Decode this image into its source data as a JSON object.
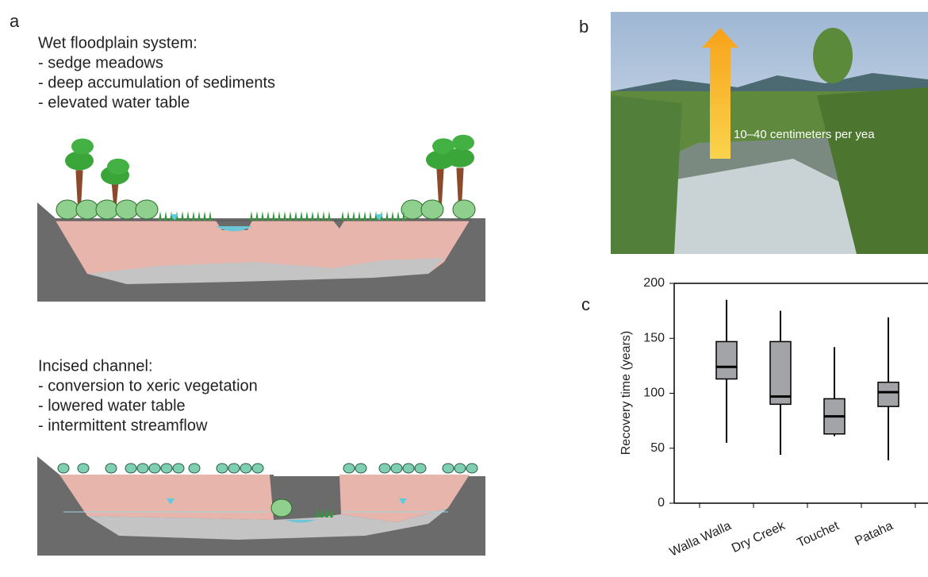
{
  "panel_labels": [
    "a",
    "b",
    "c"
  ],
  "panel_a": {
    "wet": {
      "title": "Wet floodplain system:",
      "items": [
        "- sedge meadows",
        "- deep accumulation of sediments",
        "- elevated water table"
      ]
    },
    "incised": {
      "title": "Incised channel:",
      "items": [
        "- conversion to xeric vegetation",
        "- lowered water table",
        "- intermittent streamflow"
      ]
    }
  },
  "panel_b": {
    "arrow_label": "10–40 centimeters per yea"
  },
  "chart_data": {
    "type": "box",
    "y_label": "Recovery time (years)",
    "categories": [
      "Walla Walla",
      "Dry Creek",
      "Touchet",
      "Pataha"
    ],
    "boxes": [
      {
        "low": 55,
        "q1": 113,
        "median": 124,
        "q3": 147,
        "high": 185
      },
      {
        "low": 44,
        "q1": 90,
        "median": 97,
        "q3": 147,
        "high": 175
      },
      {
        "low": 61,
        "q1": 63,
        "median": 79,
        "q3": 95,
        "high": 142
      },
      {
        "low": 39,
        "q1": 88,
        "median": 101,
        "q3": 110,
        "high": 169
      }
    ],
    "color": "#a3a4a8",
    "ylim": [
      0,
      200
    ],
    "yticks": [
      0,
      50,
      100,
      150,
      200
    ]
  }
}
